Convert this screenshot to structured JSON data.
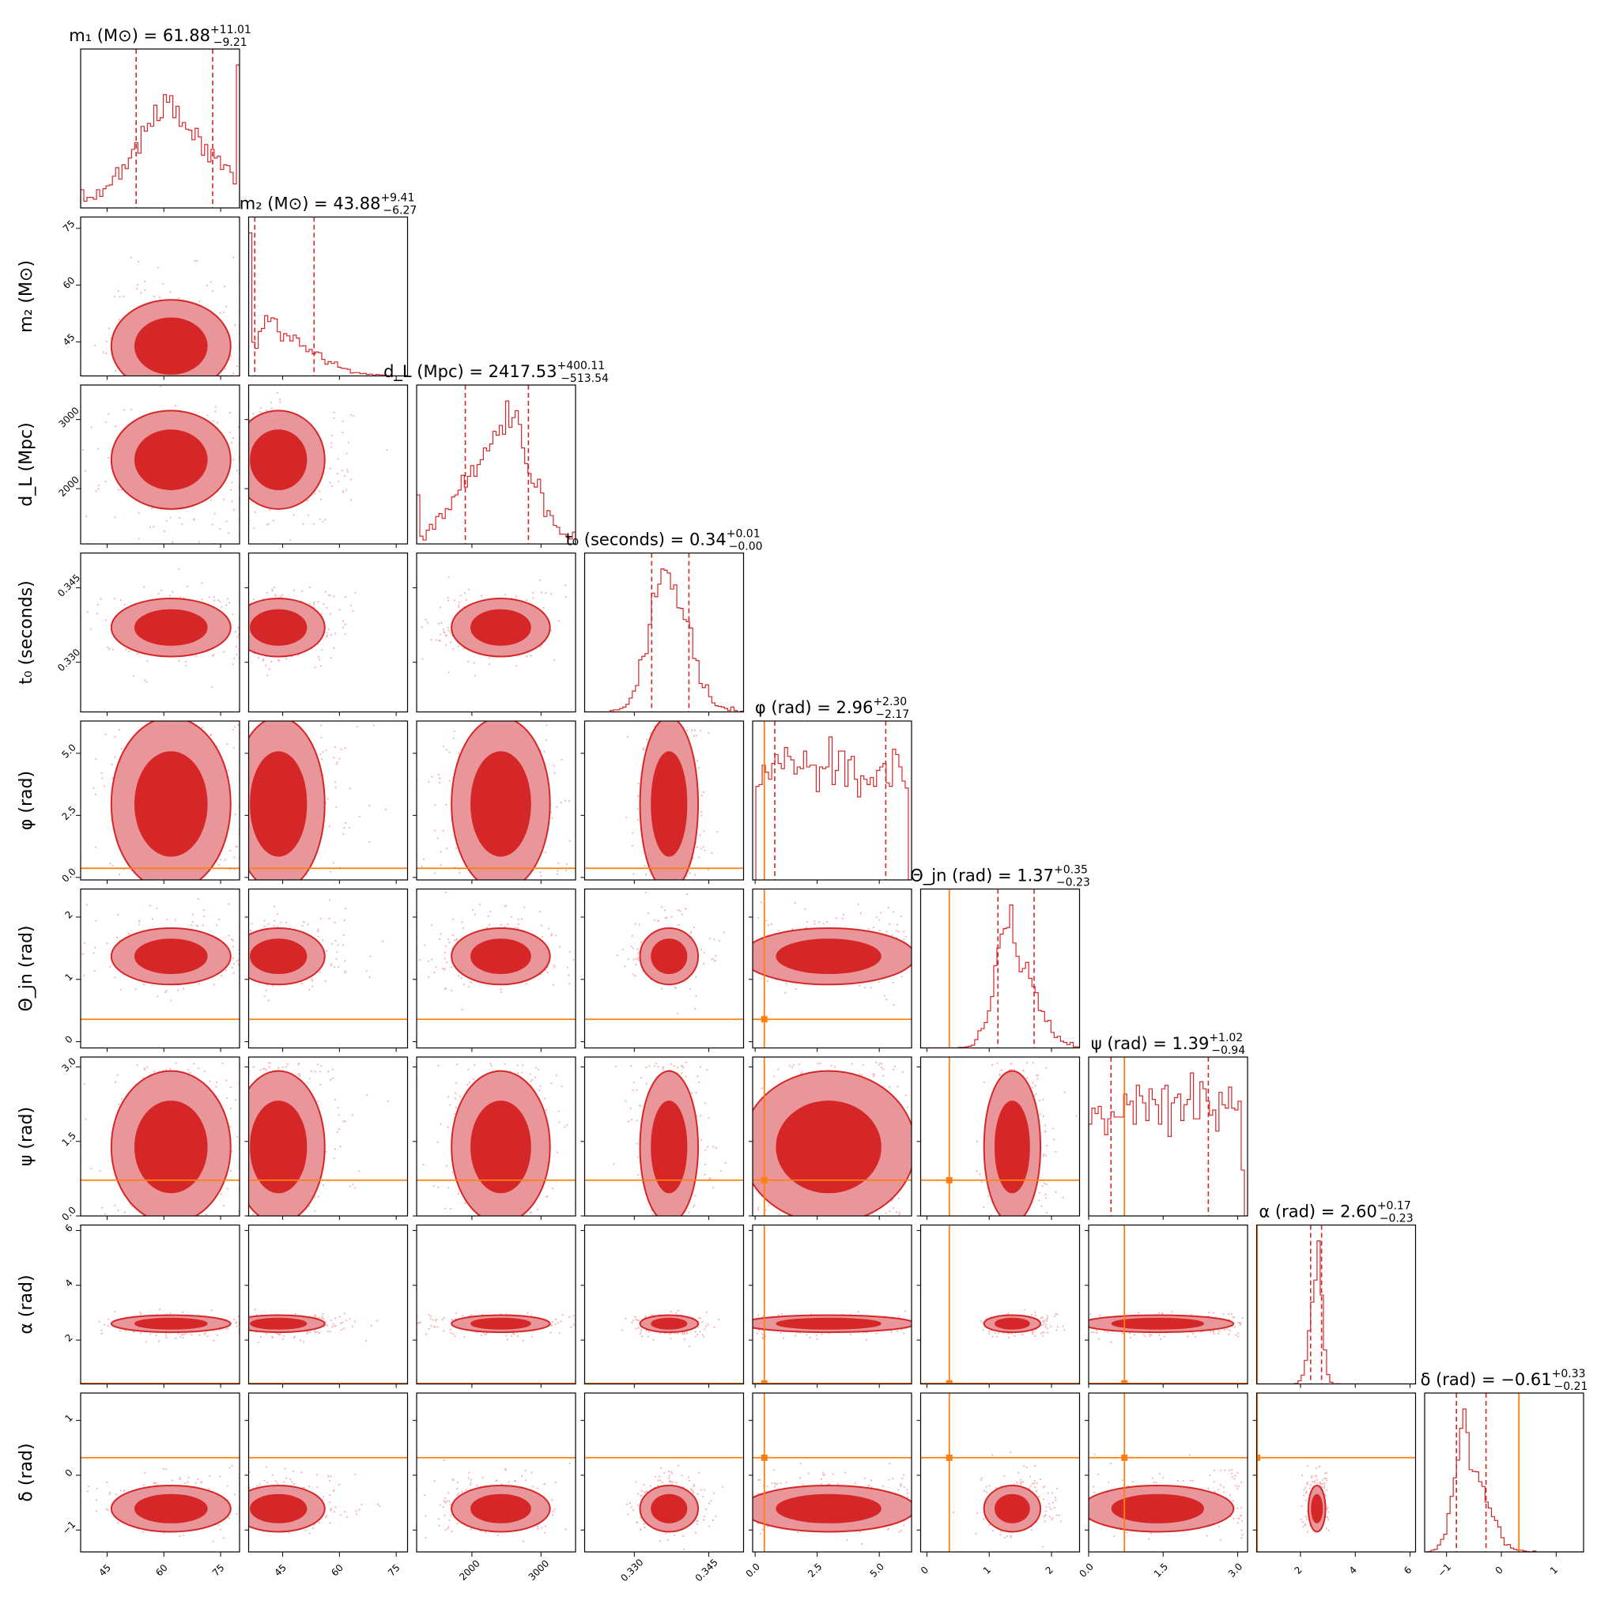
{
  "chart_data": {
    "type": "corner",
    "colors": {
      "histogram": "#d62728",
      "quantile_line": "#d62728",
      "contour_fill_inner": "#d62728",
      "contour_fill_outer": "#e8969a",
      "contour_line": "#d62728",
      "scatter": "#f4b4b6",
      "truth": "#ff7f0e"
    },
    "parameters": [
      {
        "key": "m1",
        "label": "m₁ (M⊙)",
        "title_main": "m₁ (M⊙) = 61.88",
        "title_plus": "+11.01",
        "title_minus": "−9.21",
        "range": [
          38,
          80
        ],
        "ticks": [
          45,
          60,
          75
        ],
        "tick_labels": [
          "45",
          "60",
          "75"
        ],
        "median": 61.88,
        "q_low": 52.67,
        "q_high": 72.89,
        "truth": null
      },
      {
        "key": "m2",
        "label": "m₂ (M⊙)",
        "title_main": "m₂ (M⊙) = 43.88",
        "title_plus": "+9.41",
        "title_minus": "−6.27",
        "range": [
          36,
          78
        ],
        "ticks": [
          45,
          60,
          75
        ],
        "tick_labels": [
          "45",
          "60",
          "75"
        ],
        "median": 43.88,
        "q_low": 37.61,
        "q_high": 53.29,
        "truth": null
      },
      {
        "key": "dL",
        "label": "d_L (Mpc)",
        "title_main": "d_L (Mpc) = 2417.53",
        "title_plus": "+400.11",
        "title_minus": "−513.54",
        "range": [
          1200,
          3500
        ],
        "ticks": [
          2000,
          3000
        ],
        "tick_labels": [
          "2000",
          "3000"
        ],
        "median": 2417.53,
        "q_low": 1903.99,
        "q_high": 2817.64,
        "truth": null
      },
      {
        "key": "t0",
        "label": "t₀ (seconds)",
        "title_main": "t₀ (seconds) = 0.34",
        "title_plus": "+0.01",
        "title_minus": "−0.00",
        "range": [
          0.32,
          0.352
        ],
        "ticks": [
          0.33,
          0.345
        ],
        "tick_labels": [
          "0.330",
          "0.345"
        ],
        "median": 0.337,
        "q_low": 0.3335,
        "q_high": 0.341,
        "truth": null
      },
      {
        "key": "phi",
        "label": "φ (rad)",
        "title_main": "φ (rad) = 2.96",
        "title_plus": "+2.30",
        "title_minus": "−2.17",
        "range": [
          -0.1,
          6.3
        ],
        "ticks": [
          0.0,
          2.5,
          5.0
        ],
        "tick_labels": [
          "0.0",
          "2.5",
          "5.0"
        ],
        "median": 2.96,
        "q_low": 0.79,
        "q_high": 5.26,
        "truth": 0.37
      },
      {
        "key": "theta",
        "label": "Θ_jn (rad)",
        "title_main": "Θ_jn (rad) = 1.37",
        "title_plus": "+0.35",
        "title_minus": "−0.23",
        "range": [
          -0.1,
          2.45
        ],
        "ticks": [
          0,
          1,
          2
        ],
        "tick_labels": [
          "0",
          "1",
          "2"
        ],
        "median": 1.37,
        "q_low": 1.14,
        "q_high": 1.72,
        "truth": 0.36
      },
      {
        "key": "psi",
        "label": "ψ (rad)",
        "title_main": "ψ (rad) = 1.39",
        "title_plus": "+1.02",
        "title_minus": "−0.94",
        "range": [
          0.0,
          3.2
        ],
        "ticks": [
          0.0,
          1.5,
          3.0
        ],
        "tick_labels": [
          "0.0",
          "1.5",
          "3.0"
        ],
        "median": 1.39,
        "q_low": 0.45,
        "q_high": 2.41,
        "truth": 0.72
      },
      {
        "key": "alpha",
        "label": "α (rad)",
        "title_main": "α (rad) = 2.60",
        "title_plus": "+0.17",
        "title_minus": "−0.23",
        "range": [
          0.4,
          6.2
        ],
        "ticks": [
          2,
          4,
          6
        ],
        "tick_labels": [
          "2",
          "4",
          "6"
        ],
        "median": 2.6,
        "q_low": 2.37,
        "q_high": 2.77,
        "truth": 0.42
      },
      {
        "key": "delta",
        "label": "δ (rad)",
        "title_main": "δ (rad) = −0.61",
        "title_plus": "+0.33",
        "title_minus": "−0.21",
        "range": [
          -1.4,
          1.5
        ],
        "ticks": [
          -1,
          0,
          1
        ],
        "tick_labels": [
          "−1",
          "0",
          "1"
        ],
        "median": -0.61,
        "q_low": -0.82,
        "q_high": -0.28,
        "truth": 0.32
      }
    ],
    "grid": false,
    "legend": "none"
  }
}
